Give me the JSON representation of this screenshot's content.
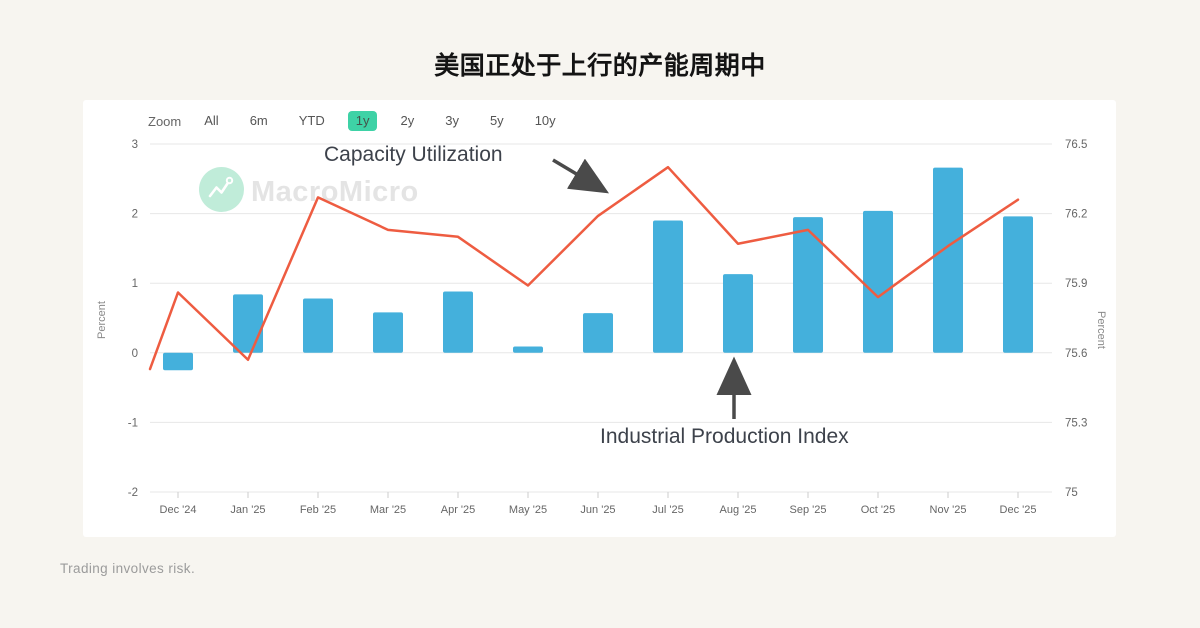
{
  "page": {
    "title": "美国正处于上行的产能周期中",
    "disclaimer": "Trading involves risk."
  },
  "toolbar": {
    "zoom_label": "Zoom",
    "ranges": [
      "All",
      "6m",
      "YTD",
      "1y",
      "2y",
      "3y",
      "5y",
      "10y"
    ],
    "active_range": "1y"
  },
  "watermark": {
    "brand": "MacroMicro"
  },
  "annotations": {
    "line_label": "Capacity Utilization",
    "bar_label": "Industrial Production Index"
  },
  "colors": {
    "bar": "#44b0dc",
    "line": "#ee5c41",
    "active_range_bg": "#3ed2a6",
    "grid": "#e7e7e7",
    "axis": "#cccccc",
    "arrow": "#4a4a4a",
    "watermark_text": "#e4e4e4",
    "logo_mint": "#c0ecd9"
  },
  "chart_data": {
    "type": "mixed",
    "title": "美国正处于上行的产能周期中",
    "categories": [
      "Dec '24",
      "Jan '25",
      "Feb '25",
      "Mar '25",
      "Apr '25",
      "May '25",
      "Jun '25",
      "Jul '25",
      "Aug '25",
      "Sep '25",
      "Oct '25",
      "Nov '25",
      "Dec '25"
    ],
    "series": [
      {
        "name": "Industrial Production Index",
        "type": "bar",
        "axis": "left",
        "color": "#44b0dc",
        "values": [
          -0.25,
          0.84,
          0.78,
          0.58,
          0.88,
          0.09,
          0.57,
          1.9,
          1.13,
          1.95,
          2.04,
          2.66,
          1.96
        ]
      },
      {
        "name": "Capacity Utilization",
        "type": "line",
        "axis": "right",
        "color": "#ee5c41",
        "lead_in_value": 75.53,
        "values": [
          75.86,
          75.57,
          76.27,
          76.13,
          76.1,
          75.89,
          76.19,
          76.4,
          76.07,
          76.13,
          75.84,
          76.06,
          76.26
        ]
      }
    ],
    "left_axis": {
      "title": "Percent",
      "ticks": [
        3,
        2,
        1,
        0,
        -1,
        -2
      ],
      "max": 3,
      "min": -2
    },
    "right_axis": {
      "title": "Percent",
      "ticks": [
        76.5,
        76.2,
        75.9,
        75.6,
        75.3,
        75
      ],
      "max": 76.5,
      "min": 75
    },
    "grid": true,
    "legend_position": "none"
  }
}
